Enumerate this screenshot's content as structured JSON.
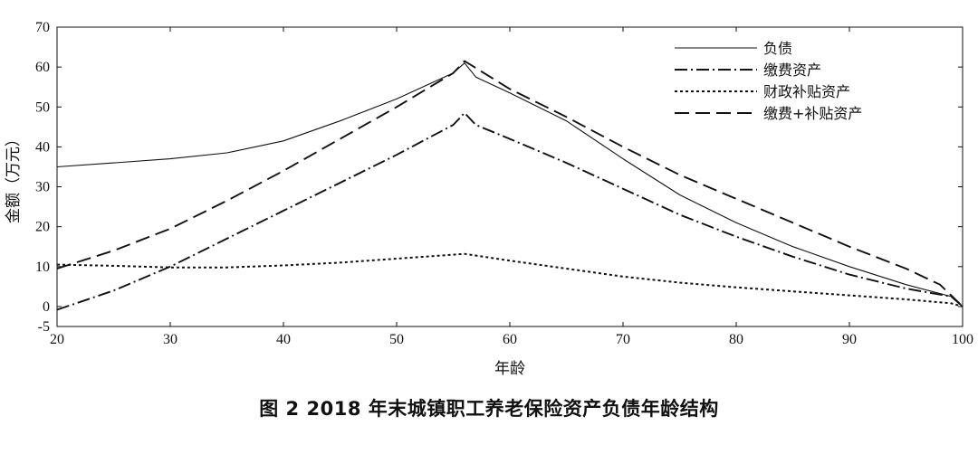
{
  "caption": "图 2    2018 年末城镇职工养老保险资产负债年龄结构",
  "chart_data": {
    "type": "line",
    "xlabel": "年龄",
    "ylabel": "金额（万元）",
    "xlim": [
      20,
      100
    ],
    "ylim": [
      -5,
      70
    ],
    "x_ticks": [
      "20",
      "30",
      "40",
      "50",
      "60",
      "70",
      "80",
      "90",
      "100"
    ],
    "y_ticks": [
      "-5",
      "0",
      "10",
      "20",
      "30",
      "40",
      "50",
      "60",
      "70"
    ],
    "legend_position": "top-right",
    "grid": false,
    "series": [
      {
        "name": "负债",
        "style": "solid",
        "x": [
          20,
          25,
          30,
          35,
          40,
          45,
          50,
          55,
          56,
          57,
          60,
          65,
          70,
          75,
          80,
          85,
          90,
          95,
          97,
          99,
          100
        ],
        "y": [
          35,
          36,
          37,
          38.5,
          41.5,
          46.5,
          52,
          58.5,
          61,
          57.5,
          53.5,
          46.5,
          37,
          28,
          21,
          15,
          10,
          5.5,
          4,
          2.5,
          0
        ]
      },
      {
        "name": "缴费资产",
        "style": "dashdot",
        "x": [
          20,
          25,
          30,
          35,
          40,
          45,
          50,
          55,
          56,
          57,
          60,
          65,
          70,
          75,
          80,
          85,
          90,
          95,
          97,
          99,
          100
        ],
        "y": [
          -0.8,
          4,
          10,
          17,
          24,
          31,
          38,
          45.5,
          48.5,
          45.5,
          42,
          36,
          29.5,
          23,
          17.5,
          12.5,
          8,
          4.5,
          3.5,
          2.5,
          0
        ]
      },
      {
        "name": "财政补贴资产",
        "style": "dotted",
        "x": [
          20,
          25,
          30,
          35,
          40,
          45,
          50,
          55,
          56,
          60,
          65,
          70,
          75,
          80,
          85,
          90,
          95,
          99,
          100
        ],
        "y": [
          10.5,
          10.2,
          9.8,
          9.8,
          10.3,
          11,
          12,
          13,
          13.2,
          11.5,
          9.5,
          7.5,
          6,
          4.8,
          3.8,
          2.8,
          1.8,
          0.8,
          0
        ]
      },
      {
        "name": "缴费+补贴资产",
        "style": "dashed",
        "x": [
          20,
          25,
          30,
          35,
          40,
          45,
          50,
          55,
          56,
          60,
          65,
          70,
          75,
          80,
          85,
          90,
          95,
          98,
          100
        ],
        "y": [
          9.5,
          14,
          19.5,
          26.5,
          34,
          42,
          50,
          58.5,
          61.5,
          54.5,
          47.5,
          40,
          33,
          27,
          21,
          15,
          9.5,
          5.5,
          0
        ]
      }
    ]
  }
}
